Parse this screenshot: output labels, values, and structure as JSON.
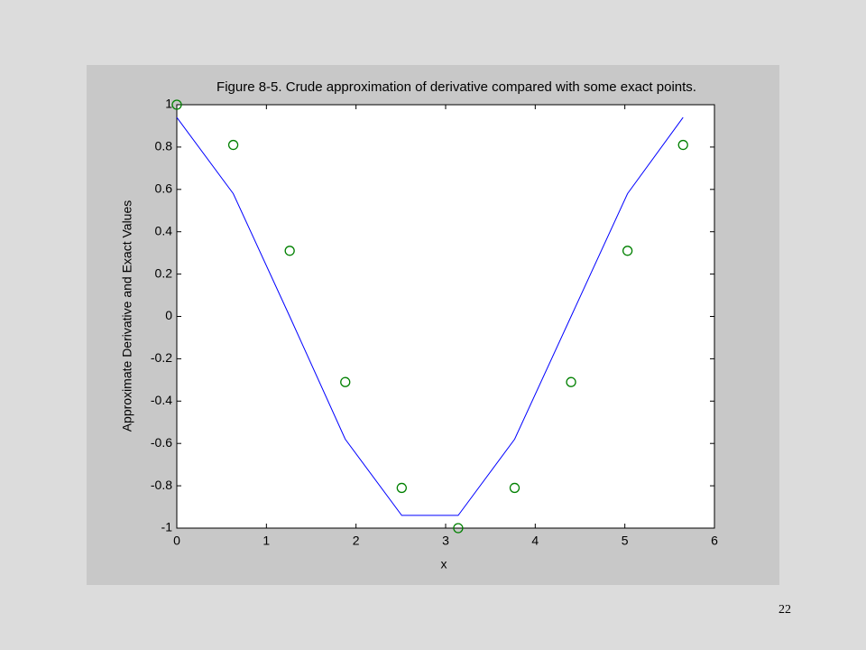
{
  "chart_data": {
    "type": "line",
    "title": "Figure 8-5. Crude approximation of derivative compared with some exact points.",
    "xlabel": "x",
    "ylabel": "Approximate Derivative and Exact Values",
    "x": [
      0,
      0.63,
      1.26,
      1.88,
      2.51,
      3.14,
      3.77,
      4.4,
      5.03,
      5.65
    ],
    "series": [
      {
        "mode": "line",
        "color": "#0000ff",
        "values": [
          0.94,
          0.58,
          0,
          -0.58,
          -0.94,
          -0.94,
          -0.58,
          0,
          0.58,
          0.94
        ]
      },
      {
        "mode": "markers",
        "color": "#008000",
        "values": [
          1,
          0.81,
          0.31,
          -0.31,
          -0.81,
          -1,
          -0.81,
          -0.31,
          0.31,
          0.81
        ]
      }
    ],
    "xlim": [
      0,
      6
    ],
    "xticks": [
      0,
      1,
      2,
      3,
      4,
      5,
      6
    ],
    "ylim": [
      -1,
      1
    ],
    "yticks": [
      -1,
      -0.8,
      -0.6,
      -0.4,
      -0.2,
      0,
      0.2,
      0.4,
      0.6,
      0.8,
      1
    ]
  },
  "page_number": "22"
}
